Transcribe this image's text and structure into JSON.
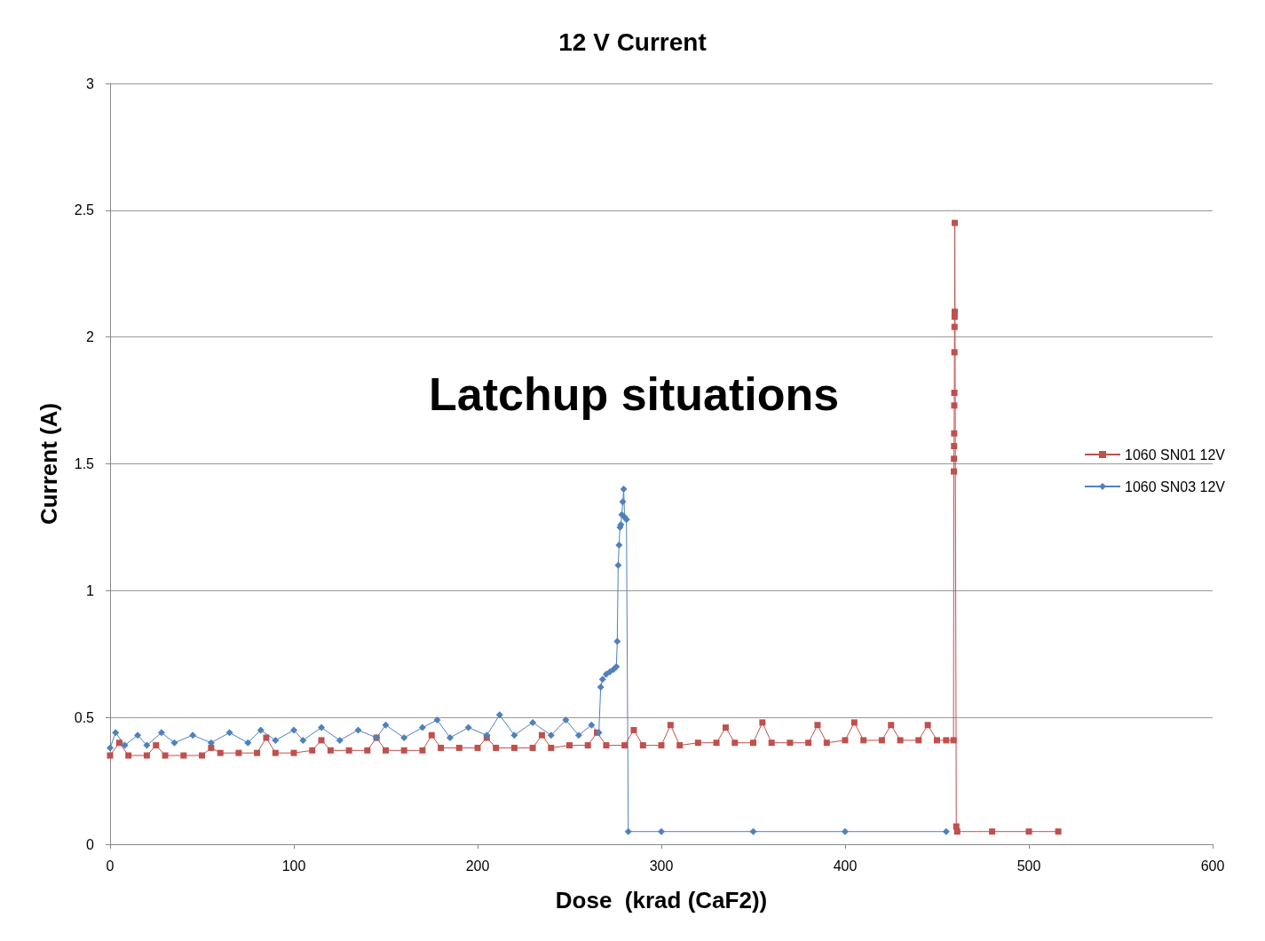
{
  "chart_data": {
    "type": "line",
    "title": "12 V Current",
    "xlabel": "Dose  (krad (CaF2))",
    "ylabel": "Current (A)",
    "annotations": [
      "Latchup situations"
    ],
    "xlim": [
      0,
      600
    ],
    "xticks": [
      0,
      100,
      200,
      300,
      400,
      500,
      600
    ],
    "ylim": [
      0,
      3
    ],
    "yticks": [
      0,
      0.5,
      1,
      1.5,
      2,
      2.5,
      3
    ],
    "grid": "y",
    "legend": "right",
    "series": [
      {
        "name": "1060 SN01 12V",
        "color": "#c0504d",
        "marker": "square",
        "x": [
          0,
          5,
          10,
          20,
          25,
          30,
          40,
          50,
          55,
          60,
          70,
          80,
          85,
          90,
          100,
          110,
          115,
          120,
          130,
          140,
          145,
          150,
          160,
          170,
          175,
          180,
          190,
          200,
          205,
          210,
          220,
          230,
          235,
          240,
          250,
          260,
          265,
          270,
          280,
          285,
          290,
          300,
          305,
          310,
          320,
          330,
          335,
          340,
          350,
          355,
          360,
          370,
          380,
          385,
          390,
          400,
          405,
          410,
          420,
          425,
          430,
          440,
          445,
          450,
          455,
          459,
          459.2,
          459.25,
          459.3,
          459.35,
          459.4,
          459.45,
          459.5,
          459.55,
          459.6,
          459.65,
          459.7,
          460.5,
          461,
          480,
          500,
          516
        ],
        "values": [
          0.35,
          0.4,
          0.35,
          0.35,
          0.39,
          0.35,
          0.35,
          0.35,
          0.38,
          0.36,
          0.36,
          0.36,
          0.42,
          0.36,
          0.36,
          0.37,
          0.41,
          0.37,
          0.37,
          0.37,
          0.42,
          0.37,
          0.37,
          0.37,
          0.43,
          0.38,
          0.38,
          0.38,
          0.42,
          0.38,
          0.38,
          0.38,
          0.43,
          0.38,
          0.39,
          0.39,
          0.44,
          0.39,
          0.39,
          0.45,
          0.39,
          0.39,
          0.47,
          0.39,
          0.4,
          0.4,
          0.46,
          0.4,
          0.4,
          0.48,
          0.4,
          0.4,
          0.4,
          0.47,
          0.4,
          0.41,
          0.48,
          0.41,
          0.41,
          0.47,
          0.41,
          0.41,
          0.47,
          0.41,
          0.41,
          0.41,
          1.47,
          1.52,
          1.57,
          1.62,
          1.73,
          1.78,
          1.94,
          2.04,
          2.08,
          2.1,
          2.45,
          0.07,
          0.05,
          0.05,
          0.05,
          0.05
        ]
      },
      {
        "name": "1060 SN03 12V",
        "color": "#4f81bd",
        "marker": "diamond",
        "x": [
          0,
          3,
          8,
          15,
          20,
          28,
          35,
          45,
          55,
          65,
          75,
          82,
          90,
          100,
          105,
          115,
          125,
          135,
          145,
          150,
          160,
          170,
          178,
          185,
          195,
          205,
          212,
          220,
          230,
          240,
          248,
          255,
          262,
          266,
          267,
          268,
          270,
          272,
          274,
          275.5,
          276,
          276.5,
          277,
          277.5,
          278,
          278.5,
          279,
          279.5,
          280,
          281,
          282,
          300,
          350,
          400,
          455
        ],
        "values": [
          0.38,
          0.44,
          0.39,
          0.43,
          0.39,
          0.44,
          0.4,
          0.43,
          0.4,
          0.44,
          0.4,
          0.45,
          0.41,
          0.45,
          0.41,
          0.46,
          0.41,
          0.45,
          0.42,
          0.47,
          0.42,
          0.46,
          0.49,
          0.42,
          0.46,
          0.43,
          0.51,
          0.43,
          0.48,
          0.43,
          0.49,
          0.43,
          0.47,
          0.44,
          0.62,
          0.65,
          0.67,
          0.68,
          0.69,
          0.7,
          0.8,
          1.1,
          1.18,
          1.25,
          1.26,
          1.3,
          1.35,
          1.4,
          1.29,
          1.28,
          0.05,
          0.05,
          0.05,
          0.05,
          0.05
        ]
      }
    ]
  }
}
